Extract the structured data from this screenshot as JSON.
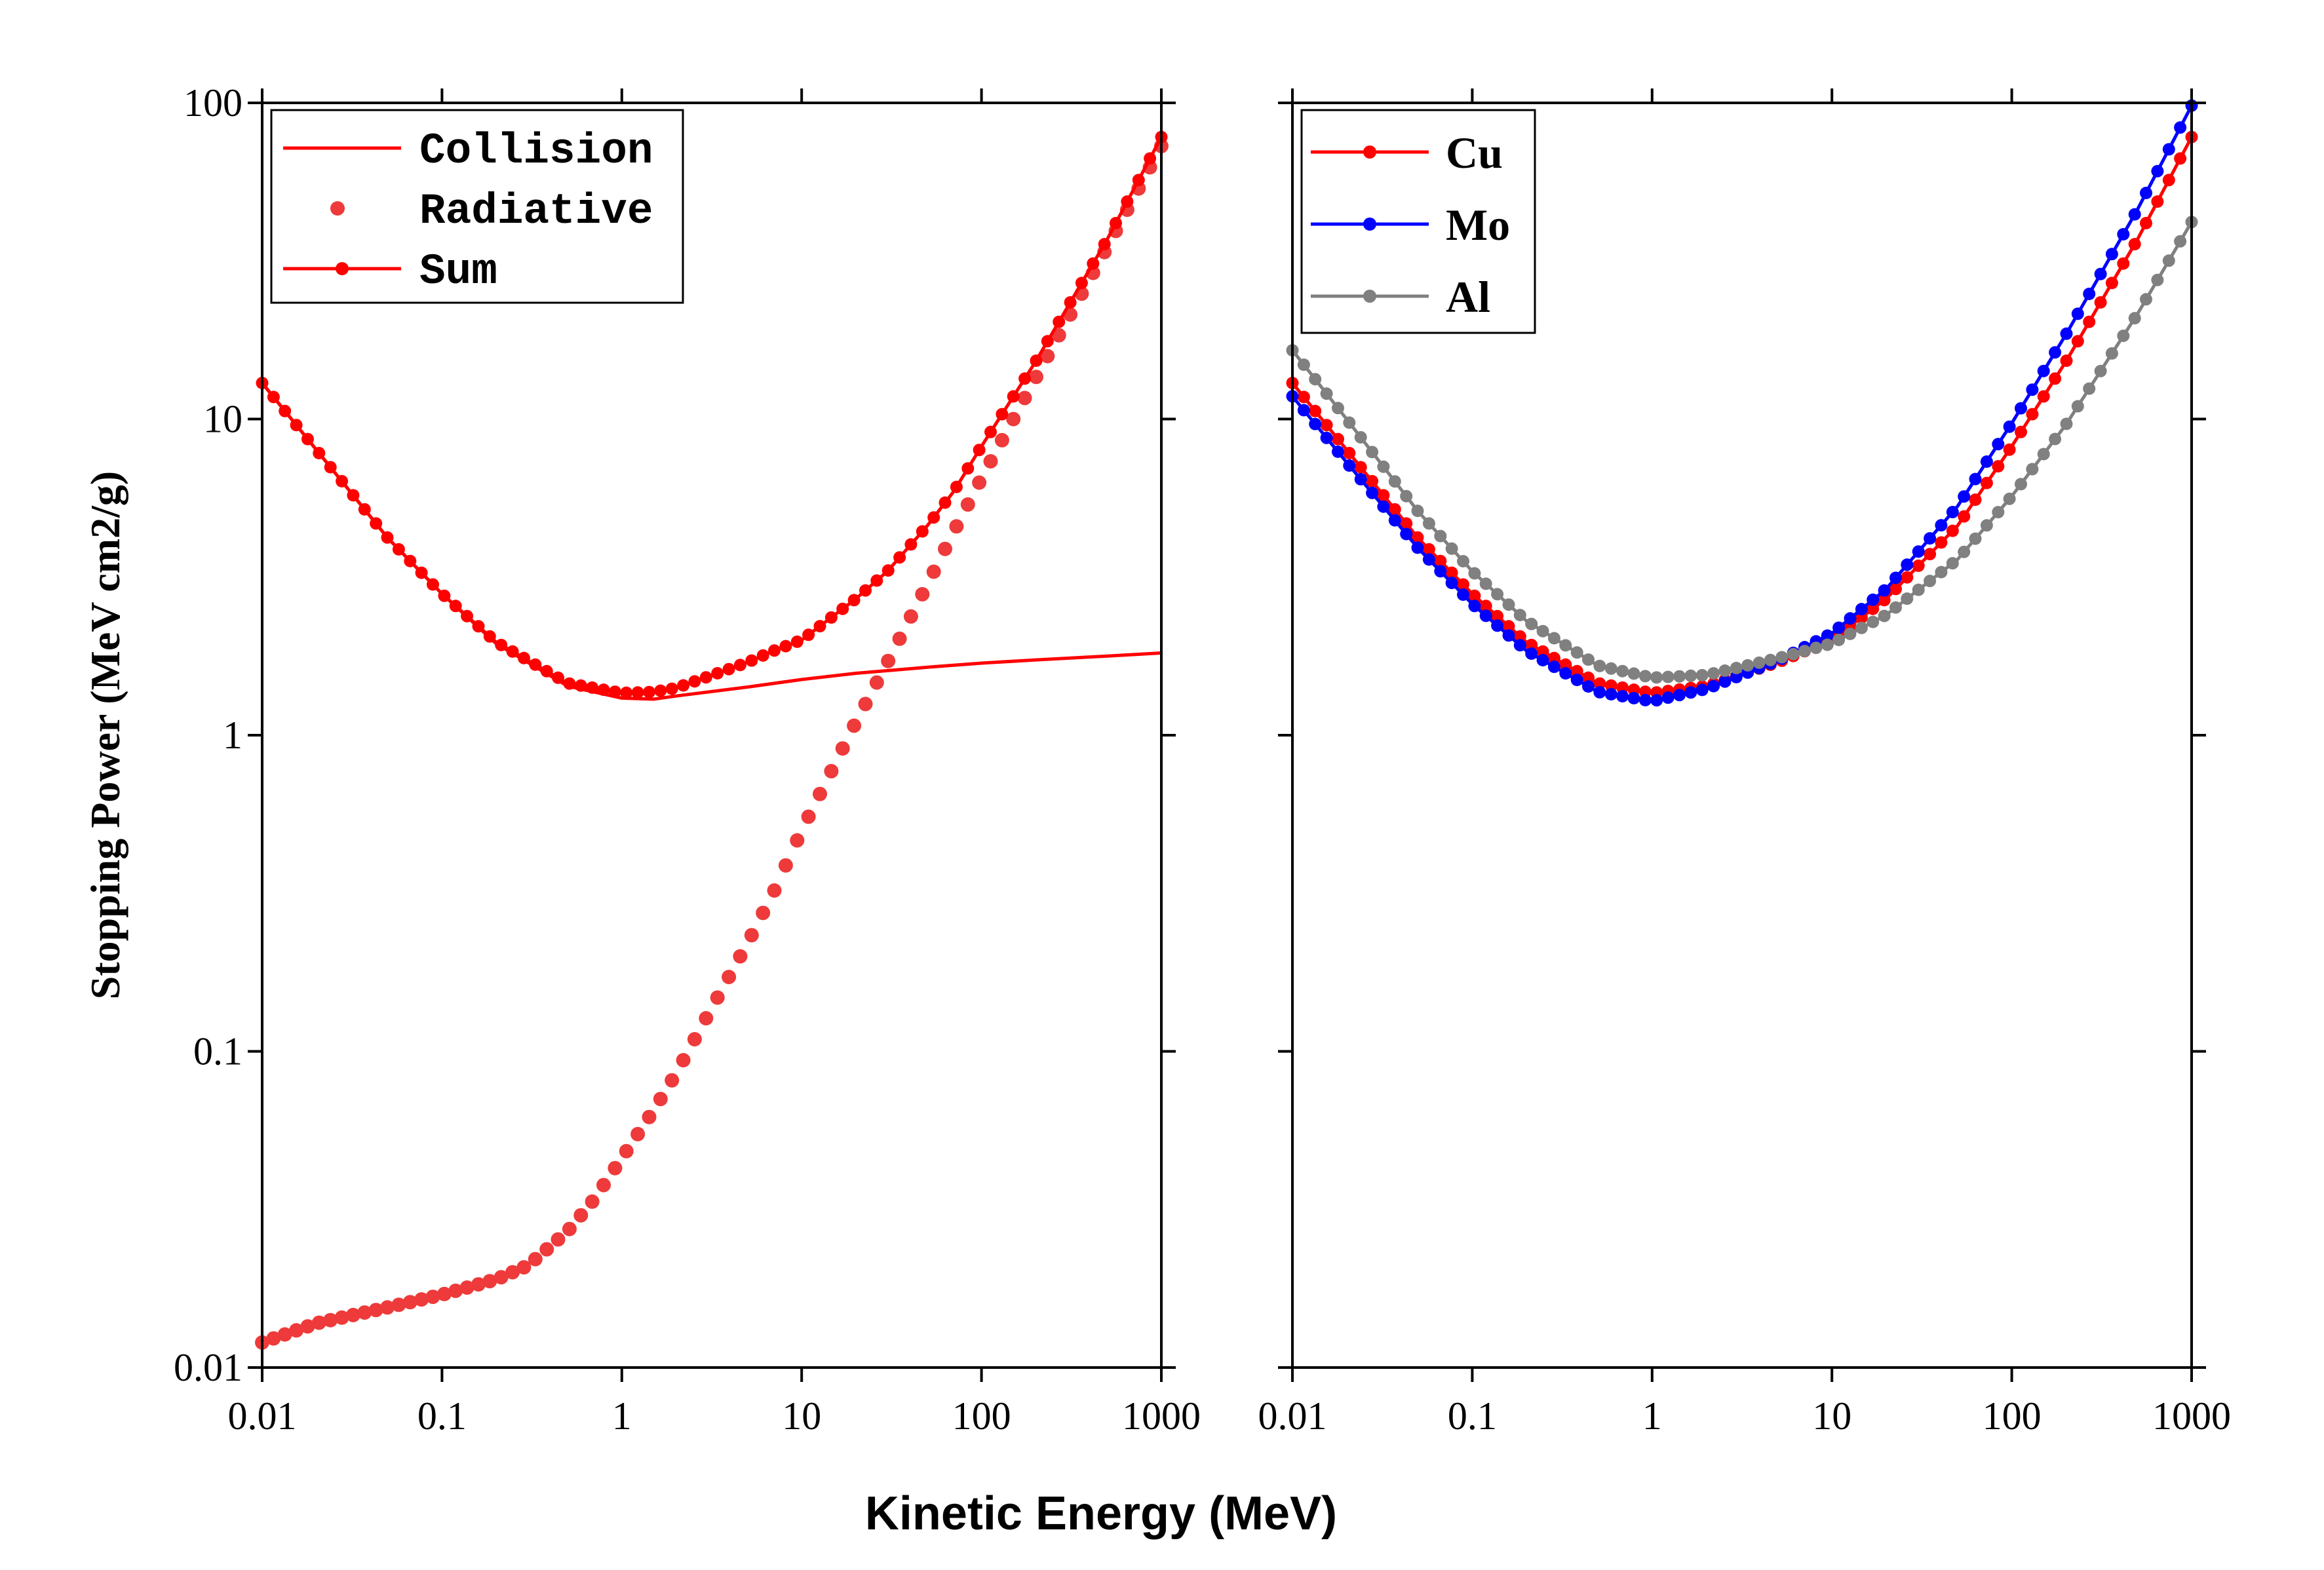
{
  "figure": {
    "xlabel": "Kinetic Energy (MeV)",
    "ylabel": "Stopping Power (MeV cm2/g)"
  },
  "chart_data": [
    {
      "type": "line",
      "name": "left-panel",
      "xscale": "log",
      "yscale": "log",
      "xlim": [
        0.01,
        1000
      ],
      "ylim": [
        0.01,
        100
      ],
      "xticks": [
        "0.01",
        "0.1",
        "1",
        "10",
        "100",
        "1000"
      ],
      "yticks": [
        "0.01",
        "0.1",
        "1",
        "10",
        "100"
      ],
      "legend_position": "top-left",
      "series": [
        {
          "name": "Collision",
          "style": "line",
          "color": "#ff0000",
          "x": [
            0.01,
            0.02,
            0.05,
            0.1,
            0.2,
            0.5,
            1,
            1.5,
            2,
            5,
            10,
            20,
            50,
            100,
            200,
            500,
            1000
          ],
          "y": [
            13.0,
            8.0,
            4.2,
            2.8,
            1.95,
            1.43,
            1.31,
            1.3,
            1.33,
            1.42,
            1.5,
            1.57,
            1.64,
            1.69,
            1.73,
            1.78,
            1.82
          ]
        },
        {
          "name": "Radiative",
          "style": "markers",
          "color": "#ee3a3a",
          "x": [
            0.01,
            0.02,
            0.05,
            0.1,
            0.2,
            0.3,
            0.5,
            0.7,
            1,
            1.5,
            2,
            3,
            5,
            7,
            10,
            20,
            30,
            50,
            70,
            100,
            200,
            500,
            1000
          ],
          "y": [
            0.012,
            0.0138,
            0.0155,
            0.017,
            0.019,
            0.021,
            0.027,
            0.034,
            0.046,
            0.065,
            0.085,
            0.13,
            0.22,
            0.32,
            0.5,
            1.1,
            1.7,
            3.0,
            4.4,
            6.5,
            13.5,
            35,
            73
          ]
        },
        {
          "name": "Sum",
          "style": "line-markers",
          "color": "#ff0000",
          "x": [
            0.01,
            0.02,
            0.05,
            0.1,
            0.2,
            0.5,
            1,
            1.5,
            2,
            3,
            5,
            7,
            10,
            20,
            30,
            50,
            70,
            100,
            200,
            500,
            1000
          ],
          "y": [
            13.0,
            8.0,
            4.2,
            2.8,
            1.97,
            1.46,
            1.36,
            1.37,
            1.41,
            1.53,
            1.7,
            1.85,
            2.0,
            2.7,
            3.3,
            4.6,
            5.9,
            8.2,
            15.2,
            37,
            78
          ]
        }
      ]
    },
    {
      "type": "line",
      "name": "right-panel",
      "xscale": "log",
      "yscale": "log",
      "xlim": [
        0.01,
        1000
      ],
      "ylim": [
        0.01,
        100
      ],
      "xticks": [
        "0.01",
        "0.1",
        "1",
        "10",
        "100",
        "1000"
      ],
      "legend_position": "top-left",
      "series": [
        {
          "name": "Cu",
          "style": "line-markers",
          "color": "#ff0000",
          "x": [
            0.01,
            0.02,
            0.05,
            0.1,
            0.2,
            0.5,
            1,
            2,
            5,
            10,
            20,
            50,
            100,
            200,
            500,
            1000
          ],
          "y": [
            13.0,
            8.0,
            4.2,
            2.8,
            1.97,
            1.46,
            1.36,
            1.43,
            1.7,
            2.0,
            2.7,
            4.6,
            8.2,
            15.2,
            37,
            78
          ]
        },
        {
          "name": "Mo",
          "style": "line-markers",
          "color": "#0000ff",
          "x": [
            0.01,
            0.02,
            0.05,
            0.1,
            0.2,
            0.5,
            1,
            2,
            5,
            10,
            20,
            50,
            100,
            200,
            500,
            1000
          ],
          "y": [
            11.8,
            7.3,
            3.9,
            2.6,
            1.85,
            1.37,
            1.28,
            1.4,
            1.72,
            2.1,
            2.9,
            5.3,
            9.7,
            18.5,
            46,
            98
          ]
        },
        {
          "name": "Al",
          "style": "line-markers",
          "color": "#808080",
          "x": [
            0.01,
            0.02,
            0.05,
            0.1,
            0.2,
            0.5,
            1,
            2,
            5,
            10,
            20,
            50,
            100,
            200,
            500,
            1000
          ],
          "y": [
            16.5,
            10.0,
            5.1,
            3.3,
            2.3,
            1.66,
            1.52,
            1.55,
            1.75,
            1.95,
            2.4,
            3.6,
            5.7,
            9.6,
            21.5,
            42
          ]
        }
      ]
    }
  ]
}
